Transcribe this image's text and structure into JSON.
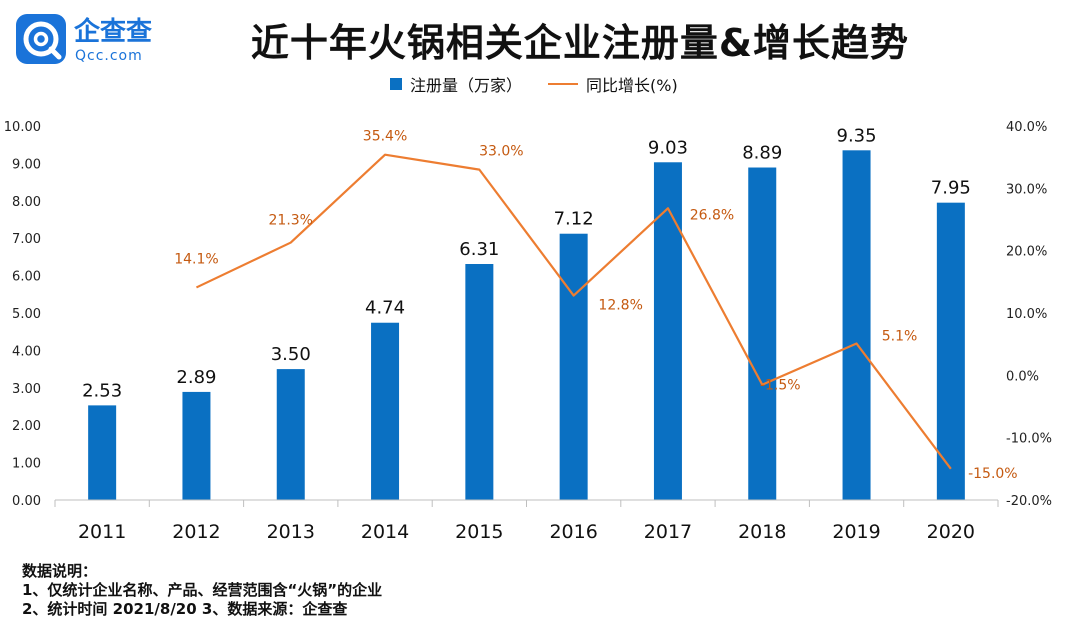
{
  "logo": {
    "brand": "企查查",
    "domain": "Qcc.com",
    "icon": "qcc-logo-icon"
  },
  "title": "近十年火锅相关企业注册量&增长趋势",
  "legend": {
    "bar_label": "注册量（万家）",
    "line_label": "同比增长(%)"
  },
  "notes": {
    "heading": "数据说明：",
    "line1": "1、仅统计企业名称、产品、经营范围含“火锅”的企业",
    "line2": "2、统计时间 2021/8/20    3、数据来源：企查查"
  },
  "colors": {
    "bar": "#0a70c2",
    "line": "#ed7d31",
    "line_label": "#c55a11",
    "logo": "#1a73d9"
  },
  "chart_data": {
    "type": "bar",
    "categories": [
      "2011",
      "2012",
      "2013",
      "2014",
      "2015",
      "2016",
      "2017",
      "2018",
      "2019",
      "2020"
    ],
    "series": [
      {
        "name": "注册量（万家）",
        "type": "bar",
        "axis": "left",
        "values": [
          2.53,
          2.89,
          3.5,
          4.74,
          6.31,
          7.12,
          9.03,
          8.89,
          9.35,
          7.95
        ],
        "labels": [
          "2.53",
          "2.89",
          "3.50",
          "4.74",
          "6.31",
          "7.12",
          "9.03",
          "8.89",
          "9.35",
          "7.95"
        ]
      },
      {
        "name": "同比增长(%)",
        "type": "line",
        "axis": "right",
        "values": [
          null,
          14.1,
          21.3,
          35.4,
          33.0,
          12.8,
          26.8,
          -1.5,
          5.1,
          -15.0
        ],
        "labels": [
          null,
          "14.1%",
          "21.3%",
          "35.4%",
          "33.0%",
          "12.8%",
          "26.8%",
          "-1.5%",
          "5.1%",
          "-15.0%"
        ]
      }
    ],
    "y_left": {
      "ylim": [
        0,
        10
      ],
      "ticks": [
        "0.00",
        "1.00",
        "2.00",
        "3.00",
        "4.00",
        "5.00",
        "6.00",
        "7.00",
        "8.00",
        "9.00",
        "10.00"
      ]
    },
    "y_right": {
      "ylim": [
        -20,
        40
      ],
      "ticks": [
        "-20.0%",
        "-10.0%",
        "0.0%",
        "10.0%",
        "20.0%",
        "30.0%",
        "40.0%"
      ]
    },
    "grid": false,
    "legend_position": "top-center"
  }
}
